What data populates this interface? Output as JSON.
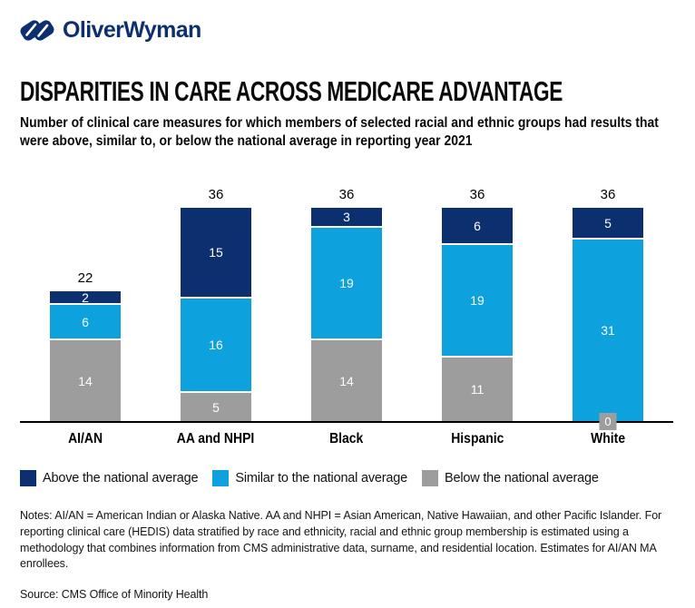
{
  "logo": {
    "text": "OliverWyman",
    "color": "#0b2f6f"
  },
  "header": {
    "title": "DISPARITIES IN CARE ACROSS MEDICARE ADVANTAGE",
    "subtitle": "Number of clinical care measures for which members of selected racial and ethnic groups had results that were above, similar to, or below the national average in reporting year 2021"
  },
  "chart_data": {
    "type": "bar",
    "stacked": true,
    "title": "",
    "xlabel": "",
    "ylabel": "Number of clinical care measures",
    "ylim": [
      0,
      36
    ],
    "grid": false,
    "legend_position": "bottom",
    "categories": [
      "AI/AN",
      "AA and NHPI",
      "Black",
      "Hispanic",
      "White"
    ],
    "totals": [
      22,
      36,
      36,
      36,
      36
    ],
    "series": [
      {
        "name": "Above the national average",
        "color": "#0b2f6f",
        "values": [
          2,
          15,
          3,
          6,
          5
        ]
      },
      {
        "name": "Similar to the national average",
        "color": "#0da2de",
        "values": [
          6,
          16,
          19,
          19,
          31
        ]
      },
      {
        "name": "Below the national average",
        "color": "#9d9d9d",
        "values": [
          14,
          5,
          14,
          11,
          0
        ]
      }
    ]
  },
  "footer": {
    "notes": "Notes: AI/AN = American Indian or Alaska Native. AA and NHPI = Asian American, Native Hawaiian, and other Pacific Islander. For reporting clinical care (HEDIS) data stratified by race and ethnicity, racial and ethnic group membership is estimated using a methodology that combines information from CMS administrative data, surname, and residential location. Estimates for AI/AN MA enrollees.",
    "source": "Source: CMS Office of Minority Health"
  }
}
